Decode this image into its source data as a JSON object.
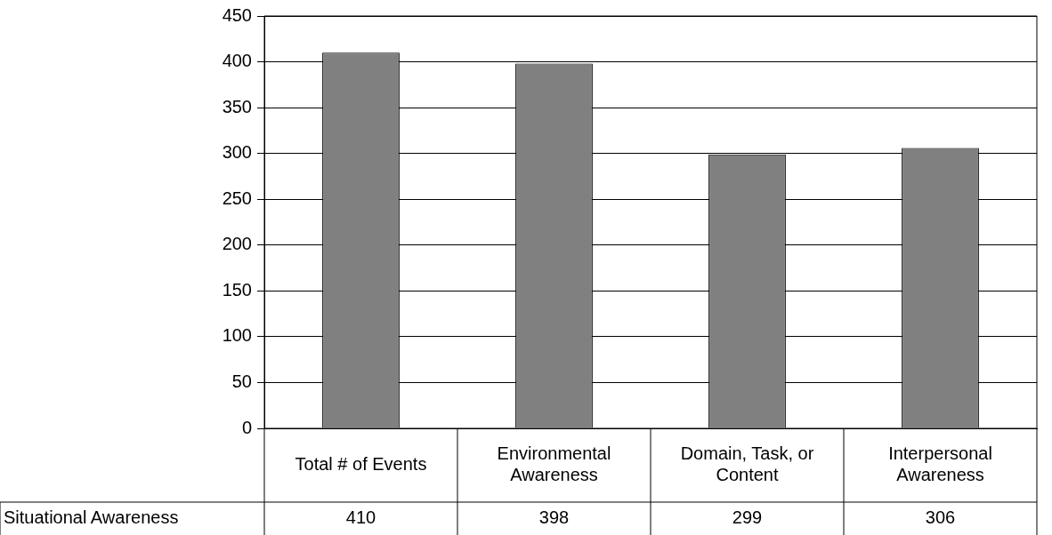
{
  "chart_data": {
    "type": "bar",
    "categories": [
      "Total # of Events",
      "Environmental Awareness",
      "Domain, Task, or Content",
      "Interpersonal Awareness"
    ],
    "series": [
      {
        "name": "Situational Awareness",
        "color": "#808080",
        "values": [
          410,
          398,
          299,
          306
        ]
      }
    ],
    "ylim": [
      0,
      450
    ],
    "yticks": [
      0,
      50,
      100,
      150,
      200,
      250,
      300,
      350,
      400,
      450
    ],
    "grid": "y",
    "data_labels": true
  }
}
